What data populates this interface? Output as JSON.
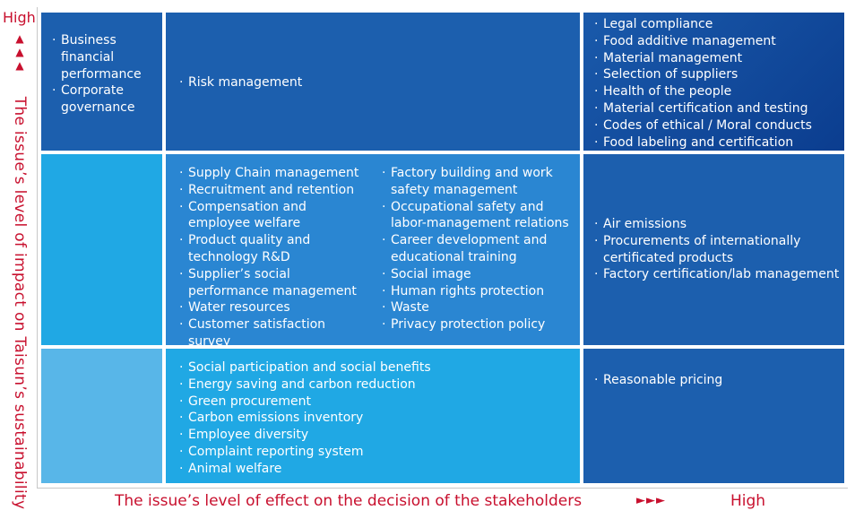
{
  "axis": {
    "y_high": "High",
    "y_arrows": "▲\n▲\n▲",
    "y_title": "The issue’s level of impact on Taisun’s sustainability",
    "x_title": "The issue’s level of effect on the decision of the stakeholders",
    "x_arrows": "►►►",
    "x_high": "High"
  },
  "colors": {
    "accent": "#c8102e",
    "cell_dark": "#1c5fae",
    "cell_darkest": "#0b3d8f",
    "cell_mid": "#2a86d2",
    "cell_light": "#20a8e4",
    "cell_lighter": "#58b6e8"
  },
  "grid": {
    "top_left": [
      "Business financial performance",
      "Corporate governance"
    ],
    "top_center": [
      "Risk management"
    ],
    "top_right": [
      "Legal compliance",
      "Food additive management",
      "Material management",
      "Selection of suppliers",
      "Health of the people",
      "Material certification and testing",
      "Codes of ethical / Moral conducts",
      "Food labeling and certification"
    ],
    "middle_left": [],
    "middle_center_col1": [
      "Supply Chain management",
      "Recruitment and retention",
      "Compensation and employee welfare",
      "Product quality and technology R&D",
      "Supplier’s social performance management",
      "Water resources",
      "Customer satisfaction survey"
    ],
    "middle_center_col2": [
      "Factory building and work safety management",
      "Occupational safety and labor-management relations",
      "Career development and educational training",
      "Social image",
      "Human rights protection",
      "Waste",
      "Privacy protection policy"
    ],
    "middle_right": [
      "Air emissions",
      "Procurements of internationally certificated products",
      "Factory certification/lab management"
    ],
    "bottom_left": [],
    "bottom_center": [
      "Social participation and social benefits",
      "Energy saving and carbon reduction",
      "Green procurement",
      "Carbon emissions inventory",
      "Employee diversity",
      "Complaint reporting system",
      "Animal welfare"
    ],
    "bottom_right": [
      "Reasonable pricing"
    ]
  }
}
